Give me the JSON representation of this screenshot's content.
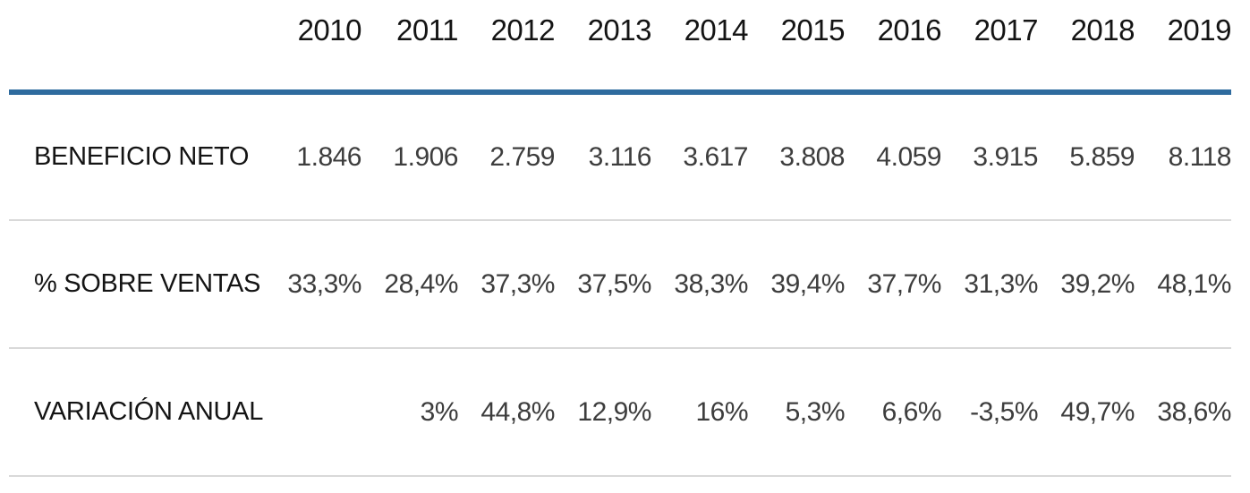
{
  "table": {
    "years": [
      "2010",
      "2011",
      "2012",
      "2013",
      "2014",
      "2015",
      "2016",
      "2017",
      "2018",
      "2019"
    ],
    "rows": [
      {
        "label": "BENEFICIO NETO",
        "values": [
          "1.846",
          "1.906",
          "2.759",
          "3.116",
          "3.617",
          "3.808",
          "4.059",
          "3.915",
          "5.859",
          "8.118"
        ]
      },
      {
        "label": "% SOBRE VENTAS",
        "values": [
          "33,3%",
          "28,4%",
          "37,3%",
          "37,5%",
          "38,3%",
          "39,4%",
          "37,7%",
          "31,3%",
          "39,2%",
          "48,1%"
        ]
      },
      {
        "label": "VARIACIÓN ANUAL",
        "values": [
          "",
          "3%",
          "44,8%",
          "12,9%",
          "16%",
          "5,3%",
          "6,6%",
          "-3,5%",
          "49,7%",
          "38,6%"
        ]
      }
    ]
  },
  "colors": {
    "accent_rule": "#2e6b9e",
    "row_divider": "#d9d9d9",
    "label_color": "#141414",
    "value_color": "#3d3d3d"
  },
  "chart_data": {
    "type": "table",
    "title": "",
    "categories": [
      "2010",
      "2011",
      "2012",
      "2013",
      "2014",
      "2015",
      "2016",
      "2017",
      "2018",
      "2019"
    ],
    "series": [
      {
        "name": "BENEFICIO NETO",
        "values": [
          1846,
          1906,
          2759,
          3116,
          3617,
          3808,
          4059,
          3915,
          5859,
          8118
        ]
      },
      {
        "name": "% SOBRE VENTAS",
        "unit": "%",
        "values": [
          33.3,
          28.4,
          37.3,
          37.5,
          38.3,
          39.4,
          37.7,
          31.3,
          39.2,
          48.1
        ]
      },
      {
        "name": "VARIACIÓN ANUAL",
        "unit": "%",
        "values": [
          null,
          3,
          44.8,
          12.9,
          16,
          5.3,
          6.6,
          -3.5,
          49.7,
          38.6
        ]
      }
    ],
    "layout": {
      "grid": "horizontal-row-dividers",
      "header_rule_color": "#2e6b9e"
    }
  }
}
